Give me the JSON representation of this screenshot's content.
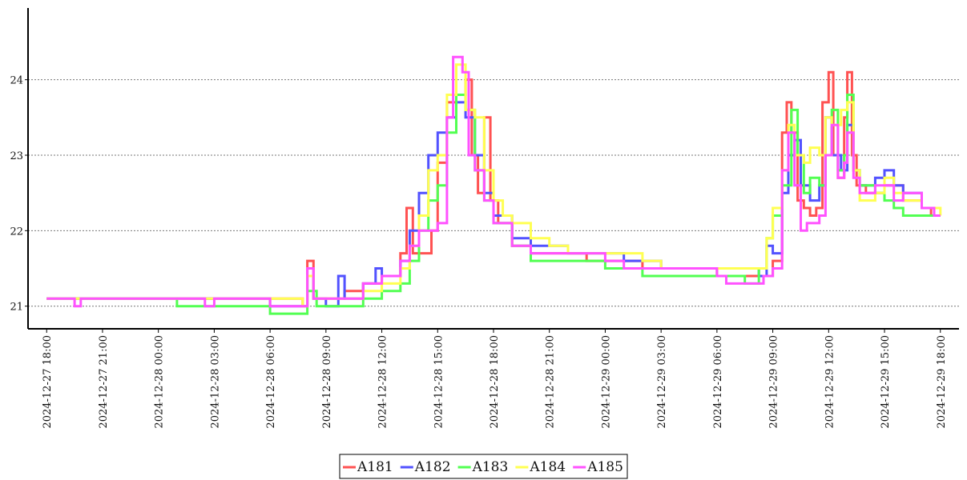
{
  "chart_data": {
    "type": "line",
    "title": "",
    "xlabel": "",
    "ylabel": "",
    "ylim": [
      20.7,
      24.95
    ],
    "yticks": [
      21,
      22,
      23,
      24
    ],
    "xlim": [
      "2024-12-27 17:00",
      "2024-12-29 19:00"
    ],
    "xticks": [
      "2024-12-27 18:00",
      "2024-12-27 21:00",
      "2024-12-28 00:00",
      "2024-12-28 03:00",
      "2024-12-28 06:00",
      "2024-12-28 09:00",
      "2024-12-28 12:00",
      "2024-12-28 15:00",
      "2024-12-28 18:00",
      "2024-12-28 21:00",
      "2024-12-29 00:00",
      "2024-12-29 03:00",
      "2024-12-29 06:00",
      "2024-12-29 09:00",
      "2024-12-29 12:00",
      "2024-12-29 15:00",
      "2024-12-29 18:00"
    ],
    "grid": "horizontal dotted",
    "legend_position": "bottom-center",
    "series": [
      {
        "name": "A181",
        "color": "#ff5252",
        "points": [
          [
            "2024-12-27 18:00",
            21.1
          ],
          [
            "2024-12-27 20:00",
            21.1
          ],
          [
            "2024-12-28 07:45",
            21.0
          ],
          [
            "2024-12-28 08:00",
            21.6
          ],
          [
            "2024-12-28 08:20",
            21.1
          ],
          [
            "2024-12-28 10:00",
            21.2
          ],
          [
            "2024-12-28 11:00",
            21.3
          ],
          [
            "2024-12-28 12:00",
            21.4
          ],
          [
            "2024-12-28 13:00",
            21.7
          ],
          [
            "2024-12-28 13:20",
            22.3
          ],
          [
            "2024-12-28 13:40",
            21.7
          ],
          [
            "2024-12-28 14:40",
            22.0
          ],
          [
            "2024-12-28 15:00",
            22.9
          ],
          [
            "2024-12-28 15:30",
            23.7
          ],
          [
            "2024-12-28 16:00",
            23.8
          ],
          [
            "2024-12-28 16:30",
            24.0
          ],
          [
            "2024-12-28 16:50",
            23.0
          ],
          [
            "2024-12-28 17:10",
            22.5
          ],
          [
            "2024-12-28 17:30",
            23.5
          ],
          [
            "2024-12-28 17:50",
            22.4
          ],
          [
            "2024-12-28 18:15",
            22.1
          ],
          [
            "2024-12-28 19:00",
            21.8
          ],
          [
            "2024-12-28 20:00",
            21.7
          ],
          [
            "2024-12-28 23:00",
            21.6
          ],
          [
            "2024-12-29 02:00",
            21.5
          ],
          [
            "2024-12-29 06:00",
            21.4
          ],
          [
            "2024-12-29 08:00",
            21.4
          ],
          [
            "2024-12-29 09:00",
            21.6
          ],
          [
            "2024-12-29 09:30",
            23.3
          ],
          [
            "2024-12-29 09:45",
            23.7
          ],
          [
            "2024-12-29 10:00",
            23.3
          ],
          [
            "2024-12-29 10:20",
            22.4
          ],
          [
            "2024-12-29 10:40",
            22.3
          ],
          [
            "2024-12-29 11:00",
            22.2
          ],
          [
            "2024-12-29 11:20",
            22.3
          ],
          [
            "2024-12-29 11:40",
            23.7
          ],
          [
            "2024-12-29 12:00",
            24.1
          ],
          [
            "2024-12-29 12:15",
            23.0
          ],
          [
            "2024-12-29 12:30",
            22.7
          ],
          [
            "2024-12-29 12:50",
            23.5
          ],
          [
            "2024-12-29 13:00",
            24.1
          ],
          [
            "2024-12-29 13:15",
            23.0
          ],
          [
            "2024-12-29 13:30",
            22.6
          ],
          [
            "2024-12-29 14:00",
            22.5
          ],
          [
            "2024-12-29 15:00",
            22.6
          ],
          [
            "2024-12-29 16:00",
            22.4
          ],
          [
            "2024-12-29 17:00",
            22.3
          ],
          [
            "2024-12-29 17:30",
            22.2
          ],
          [
            "2024-12-29 18:00",
            22.2
          ]
        ]
      },
      {
        "name": "A182",
        "color": "#5252ff",
        "points": [
          [
            "2024-12-27 18:00",
            21.1
          ],
          [
            "2024-12-28 06:00",
            21.0
          ],
          [
            "2024-12-28 07:45",
            21.0
          ],
          [
            "2024-12-28 08:00",
            21.4
          ],
          [
            "2024-12-28 08:20",
            21.1
          ],
          [
            "2024-12-28 09:00",
            21.0
          ],
          [
            "2024-12-28 09:40",
            21.4
          ],
          [
            "2024-12-28 10:00",
            21.1
          ],
          [
            "2024-12-28 11:00",
            21.3
          ],
          [
            "2024-12-28 11:40",
            21.5
          ],
          [
            "2024-12-28 12:00",
            21.4
          ],
          [
            "2024-12-28 13:00",
            21.6
          ],
          [
            "2024-12-28 13:30",
            22.0
          ],
          [
            "2024-12-28 14:00",
            22.5
          ],
          [
            "2024-12-28 14:30",
            23.0
          ],
          [
            "2024-12-28 15:00",
            23.3
          ],
          [
            "2024-12-28 15:30",
            23.5
          ],
          [
            "2024-12-28 16:00",
            23.7
          ],
          [
            "2024-12-28 16:30",
            23.5
          ],
          [
            "2024-12-28 17:00",
            23.0
          ],
          [
            "2024-12-28 17:30",
            22.5
          ],
          [
            "2024-12-28 18:00",
            22.2
          ],
          [
            "2024-12-28 19:00",
            21.9
          ],
          [
            "2024-12-28 20:00",
            21.8
          ],
          [
            "2024-12-28 22:00",
            21.7
          ],
          [
            "2024-12-29 01:00",
            21.6
          ],
          [
            "2024-12-29 02:00",
            21.6
          ],
          [
            "2024-12-29 03:00",
            21.5
          ],
          [
            "2024-12-29 07:00",
            21.5
          ],
          [
            "2024-12-29 08:15",
            21.4
          ],
          [
            "2024-12-29 08:40",
            21.8
          ],
          [
            "2024-12-29 09:00",
            21.7
          ],
          [
            "2024-12-29 09:30",
            22.5
          ],
          [
            "2024-12-29 09:50",
            23.0
          ],
          [
            "2024-12-29 10:10",
            23.2
          ],
          [
            "2024-12-29 10:30",
            22.6
          ],
          [
            "2024-12-29 11:00",
            22.4
          ],
          [
            "2024-12-29 11:30",
            22.6
          ],
          [
            "2024-12-29 11:50",
            23.5
          ],
          [
            "2024-12-29 12:10",
            23.0
          ],
          [
            "2024-12-29 12:40",
            22.8
          ],
          [
            "2024-12-29 13:00",
            23.4
          ],
          [
            "2024-12-29 13:20",
            22.8
          ],
          [
            "2024-12-29 13:40",
            22.6
          ],
          [
            "2024-12-29 14:30",
            22.7
          ],
          [
            "2024-12-29 15:00",
            22.8
          ],
          [
            "2024-12-29 15:30",
            22.6
          ],
          [
            "2024-12-29 16:00",
            22.5
          ],
          [
            "2024-12-29 17:00",
            22.3
          ],
          [
            "2024-12-29 17:40",
            22.2
          ],
          [
            "2024-12-29 18:00",
            22.2
          ]
        ]
      },
      {
        "name": "A183",
        "color": "#52ff52",
        "points": [
          [
            "2024-12-27 18:00",
            21.1
          ],
          [
            "2024-12-28 00:30",
            21.1
          ],
          [
            "2024-12-28 01:00",
            21.0
          ],
          [
            "2024-12-28 05:00",
            21.0
          ],
          [
            "2024-12-28 06:00",
            20.9
          ],
          [
            "2024-12-28 07:45",
            20.9
          ],
          [
            "2024-12-28 08:00",
            21.2
          ],
          [
            "2024-12-28 08:30",
            21.0
          ],
          [
            "2024-12-28 10:00",
            21.0
          ],
          [
            "2024-12-28 11:00",
            21.1
          ],
          [
            "2024-12-28 12:00",
            21.2
          ],
          [
            "2024-12-28 13:00",
            21.3
          ],
          [
            "2024-12-28 13:30",
            21.6
          ],
          [
            "2024-12-28 14:00",
            22.0
          ],
          [
            "2024-12-28 14:30",
            22.4
          ],
          [
            "2024-12-28 15:00",
            22.6
          ],
          [
            "2024-12-28 15:30",
            23.3
          ],
          [
            "2024-12-28 16:00",
            23.8
          ],
          [
            "2024-12-28 16:30",
            23.6
          ],
          [
            "2024-12-28 17:00",
            22.8
          ],
          [
            "2024-12-28 17:30",
            22.4
          ],
          [
            "2024-12-28 18:00",
            22.1
          ],
          [
            "2024-12-28 19:00",
            21.8
          ],
          [
            "2024-12-28 20:00",
            21.6
          ],
          [
            "2024-12-28 22:00",
            21.6
          ],
          [
            "2024-12-29 00:00",
            21.5
          ],
          [
            "2024-12-29 02:00",
            21.4
          ],
          [
            "2024-12-29 06:00",
            21.4
          ],
          [
            "2024-12-29 07:30",
            21.3
          ],
          [
            "2024-12-29 08:15",
            21.5
          ],
          [
            "2024-12-29 08:40",
            21.9
          ],
          [
            "2024-12-29 09:00",
            22.2
          ],
          [
            "2024-12-29 09:30",
            22.6
          ],
          [
            "2024-12-29 10:00",
            23.6
          ],
          [
            "2024-12-29 10:20",
            23.0
          ],
          [
            "2024-12-29 10:40",
            22.5
          ],
          [
            "2024-12-29 11:00",
            22.7
          ],
          [
            "2024-12-29 11:30",
            22.6
          ],
          [
            "2024-12-29 11:50",
            23.0
          ],
          [
            "2024-12-29 12:10",
            23.6
          ],
          [
            "2024-12-29 12:30",
            22.8
          ],
          [
            "2024-12-29 12:50",
            23.0
          ],
          [
            "2024-12-29 13:00",
            23.8
          ],
          [
            "2024-12-29 13:20",
            22.8
          ],
          [
            "2024-12-29 13:40",
            22.6
          ],
          [
            "2024-12-29 14:30",
            22.5
          ],
          [
            "2024-12-29 15:00",
            22.4
          ],
          [
            "2024-12-29 15:30",
            22.3
          ],
          [
            "2024-12-29 16:00",
            22.2
          ],
          [
            "2024-12-29 17:00",
            22.2
          ],
          [
            "2024-12-29 18:00",
            22.2
          ]
        ]
      },
      {
        "name": "A184",
        "color": "#ffff52",
        "points": [
          [
            "2024-12-27 18:00",
            21.1
          ],
          [
            "2024-12-28 06:00",
            21.1
          ],
          [
            "2024-12-28 07:45",
            21.0
          ],
          [
            "2024-12-28 08:00",
            21.4
          ],
          [
            "2024-12-28 08:20",
            21.1
          ],
          [
            "2024-12-28 10:00",
            21.1
          ],
          [
            "2024-12-28 11:00",
            21.2
          ],
          [
            "2024-12-28 12:00",
            21.3
          ],
          [
            "2024-12-28 13:00",
            21.5
          ],
          [
            "2024-12-28 13:30",
            21.8
          ],
          [
            "2024-12-28 14:00",
            22.2
          ],
          [
            "2024-12-28 14:30",
            22.8
          ],
          [
            "2024-12-28 15:00",
            23.0
          ],
          [
            "2024-12-28 15:30",
            23.8
          ],
          [
            "2024-12-28 16:00",
            24.2
          ],
          [
            "2024-12-28 16:30",
            23.6
          ],
          [
            "2024-12-28 17:00",
            23.5
          ],
          [
            "2024-12-28 17:30",
            22.8
          ],
          [
            "2024-12-28 18:00",
            22.4
          ],
          [
            "2024-12-28 18:30",
            22.2
          ],
          [
            "2024-12-28 19:00",
            22.1
          ],
          [
            "2024-12-28 20:00",
            21.9
          ],
          [
            "2024-12-28 21:00",
            21.8
          ],
          [
            "2024-12-28 22:00",
            21.7
          ],
          [
            "2024-12-29 02:00",
            21.6
          ],
          [
            "2024-12-29 03:00",
            21.5
          ],
          [
            "2024-12-29 07:00",
            21.5
          ],
          [
            "2024-12-29 08:15",
            21.5
          ],
          [
            "2024-12-29 08:40",
            21.9
          ],
          [
            "2024-12-29 09:00",
            22.3
          ],
          [
            "2024-12-29 09:30",
            22.8
          ],
          [
            "2024-12-29 09:50",
            23.4
          ],
          [
            "2024-12-29 10:10",
            23.0
          ],
          [
            "2024-12-29 10:40",
            22.9
          ],
          [
            "2024-12-29 11:00",
            23.1
          ],
          [
            "2024-12-29 11:30",
            23.0
          ],
          [
            "2024-12-29 11:50",
            23.5
          ],
          [
            "2024-12-29 12:10",
            23.4
          ],
          [
            "2024-12-29 12:40",
            23.6
          ],
          [
            "2024-12-29 13:00",
            23.7
          ],
          [
            "2024-12-29 13:20",
            22.8
          ],
          [
            "2024-12-29 13:40",
            22.4
          ],
          [
            "2024-12-29 14:30",
            22.5
          ],
          [
            "2024-12-29 15:00",
            22.7
          ],
          [
            "2024-12-29 15:30",
            22.5
          ],
          [
            "2024-12-29 16:00",
            22.4
          ],
          [
            "2024-12-29 17:00",
            22.3
          ],
          [
            "2024-12-29 18:00",
            22.2
          ]
        ]
      },
      {
        "name": "A185",
        "color": "#ff52ff",
        "points": [
          [
            "2024-12-27 18:00",
            21.1
          ],
          [
            "2024-12-27 19:30",
            21.0
          ],
          [
            "2024-12-27 19:50",
            21.1
          ],
          [
            "2024-12-28 02:30",
            21.0
          ],
          [
            "2024-12-28 03:00",
            21.1
          ],
          [
            "2024-12-28 06:00",
            21.0
          ],
          [
            "2024-12-28 07:45",
            21.0
          ],
          [
            "2024-12-28 08:00",
            21.5
          ],
          [
            "2024-12-28 08:20",
            21.1
          ],
          [
            "2024-12-28 10:00",
            21.1
          ],
          [
            "2024-12-28 11:00",
            21.3
          ],
          [
            "2024-12-28 12:00",
            21.4
          ],
          [
            "2024-12-28 13:00",
            21.6
          ],
          [
            "2024-12-28 13:30",
            21.8
          ],
          [
            "2024-12-28 14:00",
            22.0
          ],
          [
            "2024-12-28 15:00",
            22.1
          ],
          [
            "2024-12-28 15:30",
            23.5
          ],
          [
            "2024-12-28 15:50",
            24.3
          ],
          [
            "2024-12-28 16:20",
            24.1
          ],
          [
            "2024-12-28 16:40",
            23.0
          ],
          [
            "2024-12-28 17:00",
            22.8
          ],
          [
            "2024-12-28 17:30",
            22.4
          ],
          [
            "2024-12-28 18:00",
            22.1
          ],
          [
            "2024-12-28 19:00",
            21.8
          ],
          [
            "2024-12-28 20:00",
            21.7
          ],
          [
            "2024-12-29 00:00",
            21.6
          ],
          [
            "2024-12-29 01:00",
            21.5
          ],
          [
            "2024-12-29 06:00",
            21.4
          ],
          [
            "2024-12-29 06:30",
            21.3
          ],
          [
            "2024-12-29 08:00",
            21.3
          ],
          [
            "2024-12-29 08:30",
            21.4
          ],
          [
            "2024-12-29 09:00",
            21.5
          ],
          [
            "2024-12-29 09:30",
            22.8
          ],
          [
            "2024-12-29 09:50",
            23.3
          ],
          [
            "2024-12-29 10:10",
            22.6
          ],
          [
            "2024-12-29 10:30",
            22.0
          ],
          [
            "2024-12-29 10:50",
            22.1
          ],
          [
            "2024-12-29 11:30",
            22.2
          ],
          [
            "2024-12-29 11:50",
            23.0
          ],
          [
            "2024-12-29 12:10",
            23.4
          ],
          [
            "2024-12-29 12:30",
            22.7
          ],
          [
            "2024-12-29 12:50",
            22.9
          ],
          [
            "2024-12-29 13:00",
            23.3
          ],
          [
            "2024-12-29 13:20",
            22.7
          ],
          [
            "2024-12-29 13:40",
            22.5
          ],
          [
            "2024-12-29 14:30",
            22.6
          ],
          [
            "2024-12-29 15:00",
            22.6
          ],
          [
            "2024-12-29 15:30",
            22.4
          ],
          [
            "2024-12-29 16:00",
            22.5
          ],
          [
            "2024-12-29 17:00",
            22.3
          ],
          [
            "2024-12-29 17:40",
            22.2
          ],
          [
            "2024-12-29 18:00",
            22.2
          ]
        ]
      }
    ]
  }
}
